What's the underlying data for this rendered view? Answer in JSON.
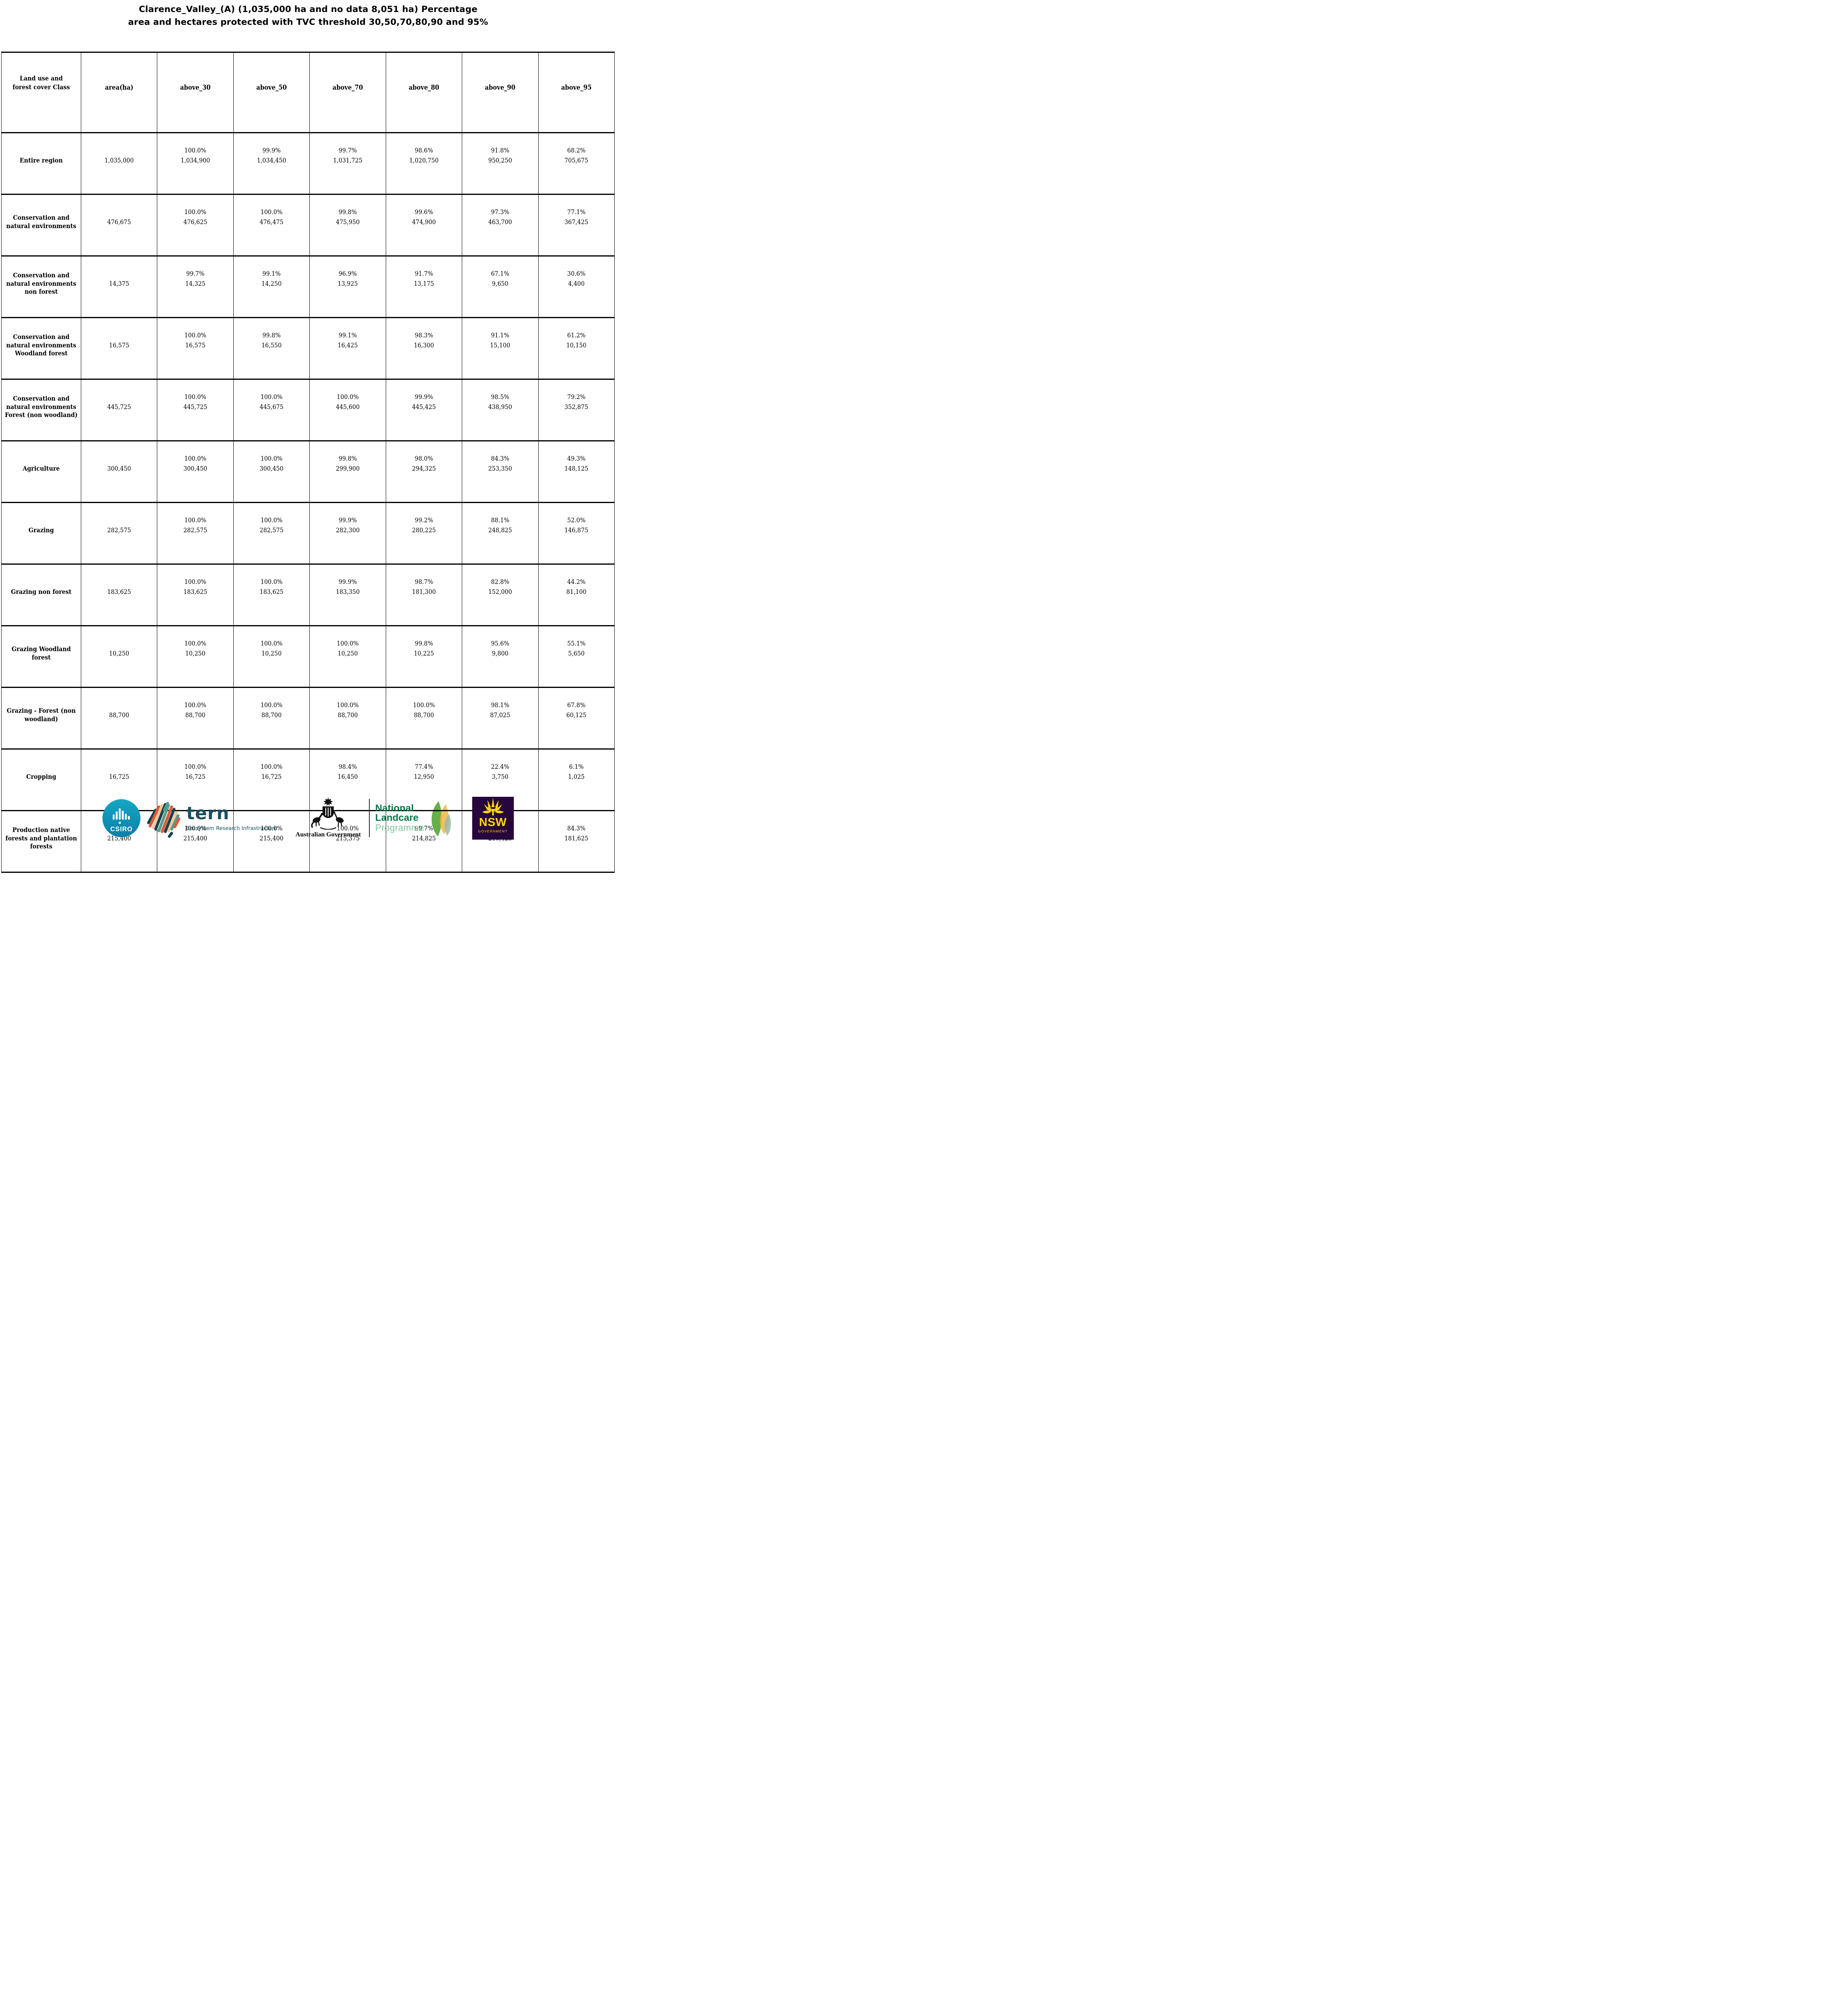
{
  "title": {
    "line1": "Clarence_Valley_(A) (1,035,000 ha and no data 8,051 ha) Percentage",
    "line2": "area and hectares protected with TVC threshold 30,50,70,80,90 and 95%"
  },
  "table": {
    "columns": [
      "Land use and forest cover Class",
      "area(ha)",
      "above_30",
      "above_50",
      "above_70",
      "above_80",
      "above_90",
      "above_95"
    ],
    "rows": [
      {
        "label": "Entire region",
        "area": "1,035,000",
        "above": [
          [
            "100.0%",
            "1,034,900"
          ],
          [
            "99.9%",
            "1,034,450"
          ],
          [
            "99.7%",
            "1,031,725"
          ],
          [
            "98.6%",
            "1,020,750"
          ],
          [
            "91.8%",
            "950,250"
          ],
          [
            "68.2%",
            "705,675"
          ]
        ]
      },
      {
        "label": "Conservation and natural environments",
        "area": "476,675",
        "above": [
          [
            "100.0%",
            "476,625"
          ],
          [
            "100.0%",
            "476,475"
          ],
          [
            "99.8%",
            "475,950"
          ],
          [
            "99.6%",
            "474,900"
          ],
          [
            "97.3%",
            "463,700"
          ],
          [
            "77.1%",
            "367,425"
          ]
        ]
      },
      {
        "label": "Conservation and natural environments non forest",
        "area": "14,375",
        "above": [
          [
            "99.7%",
            "14,325"
          ],
          [
            "99.1%",
            "14,250"
          ],
          [
            "96.9%",
            "13,925"
          ],
          [
            "91.7%",
            "13,175"
          ],
          [
            "67.1%",
            "9,650"
          ],
          [
            "30.6%",
            "4,400"
          ]
        ]
      },
      {
        "label": "Conservation and natural environments Woodland forest",
        "area": "16,575",
        "above": [
          [
            "100.0%",
            "16,575"
          ],
          [
            "99.8%",
            "16,550"
          ],
          [
            "99.1%",
            "16,425"
          ],
          [
            "98.3%",
            "16,300"
          ],
          [
            "91.1%",
            "15,100"
          ],
          [
            "61.2%",
            "10,150"
          ]
        ]
      },
      {
        "label": "Conservation and natural environments Forest (non woodland)",
        "area": "445,725",
        "above": [
          [
            "100.0%",
            "445,725"
          ],
          [
            "100.0%",
            "445,675"
          ],
          [
            "100.0%",
            "445,600"
          ],
          [
            "99.9%",
            "445,425"
          ],
          [
            "98.5%",
            "438,950"
          ],
          [
            "79.2%",
            "352,875"
          ]
        ]
      },
      {
        "label": "Agriculture",
        "area": "300,450",
        "above": [
          [
            "100.0%",
            "300,450"
          ],
          [
            "100.0%",
            "300,450"
          ],
          [
            "99.8%",
            "299,900"
          ],
          [
            "98.0%",
            "294,325"
          ],
          [
            "84.3%",
            "253,350"
          ],
          [
            "49.3%",
            "148,125"
          ]
        ]
      },
      {
        "label": "Grazing",
        "area": "282,575",
        "above": [
          [
            "100.0%",
            "282,575"
          ],
          [
            "100.0%",
            "282,575"
          ],
          [
            "99.9%",
            "282,300"
          ],
          [
            "99.2%",
            "280,225"
          ],
          [
            "88.1%",
            "248,825"
          ],
          [
            "52.0%",
            "146,875"
          ]
        ]
      },
      {
        "label": "Grazing non forest",
        "area": "183,625",
        "above": [
          [
            "100.0%",
            "183,625"
          ],
          [
            "100.0%",
            "183,625"
          ],
          [
            "99.9%",
            "183,350"
          ],
          [
            "98.7%",
            "181,300"
          ],
          [
            "82.8%",
            "152,000"
          ],
          [
            "44.2%",
            "81,100"
          ]
        ]
      },
      {
        "label": "Grazing Woodland forest",
        "area": "10,250",
        "above": [
          [
            "100.0%",
            "10,250"
          ],
          [
            "100.0%",
            "10,250"
          ],
          [
            "100.0%",
            "10,250"
          ],
          [
            "99.8%",
            "10,225"
          ],
          [
            "95.6%",
            "9,800"
          ],
          [
            "55.1%",
            "5,650"
          ]
        ]
      },
      {
        "label": "Grazing - Forest (non woodland)",
        "area": "88,700",
        "above": [
          [
            "100.0%",
            "88,700"
          ],
          [
            "100.0%",
            "88,700"
          ],
          [
            "100.0%",
            "88,700"
          ],
          [
            "100.0%",
            "88,700"
          ],
          [
            "98.1%",
            "87,025"
          ],
          [
            "67.8%",
            "60,125"
          ]
        ]
      },
      {
        "label": "Cropping",
        "area": "16,725",
        "above": [
          [
            "100.0%",
            "16,725"
          ],
          [
            "100.0%",
            "16,725"
          ],
          [
            "98.4%",
            "16,450"
          ],
          [
            "77.4%",
            "12,950"
          ],
          [
            "22.4%",
            "3,750"
          ],
          [
            "6.1%",
            "1,025"
          ]
        ]
      },
      {
        "label": "Production native forests and plantation forests",
        "area": "215,400",
        "above": [
          [
            "100.0%",
            "215,400"
          ],
          [
            "100.0%",
            "215,400"
          ],
          [
            "100.0%",
            "215,375"
          ],
          [
            "99.7%",
            "214,825"
          ],
          [
            "97.7%",
            "210,425"
          ],
          [
            "84.3%",
            "181,625"
          ]
        ]
      }
    ]
  },
  "footer": {
    "csiro": {
      "label": "CSIRO"
    },
    "tern": {
      "name": "tern",
      "tagline": "Ecosystem Research Infrastructure"
    },
    "aus_gov": {
      "label": "Australian Government"
    },
    "landcare": {
      "line1": "National",
      "line2": "Landcare",
      "line3": "Programme"
    },
    "nsw": {
      "name": "NSW",
      "sub": "GOVERNMENT"
    }
  },
  "colors": {
    "csiro_teal_top": "#14a7c4",
    "csiro_teal_bottom": "#0a7fa6",
    "tern_dark": "#1d4e5f",
    "tern_orange": "#e05a38",
    "tern_sea_green": "#4f9e8c",
    "tern_peach": "#f5c49c",
    "ausgov_black": "#111111",
    "landcare_green": "#00784a",
    "landcare_light_green": "#7cc79a",
    "leaf_green": "#58a83e",
    "leaf_gold": "#eeb33f",
    "leaf_sage": "#9cb8a6",
    "nsw_purple": "#26063c",
    "nsw_yellow": "#ffd900"
  }
}
